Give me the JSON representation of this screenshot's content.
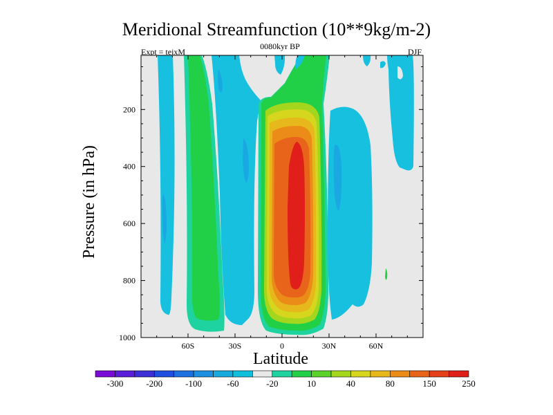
{
  "chart_data": {
    "type": "heatmap",
    "title": "Meridional Streamfunction (10**9kg/m-2)",
    "subtitle_left": "Expt = teixM",
    "subtitle_center": "0080kyr BP",
    "subtitle_right": "DJF",
    "xlabel": "Latitude",
    "ylabel": "Pressure (in hPa)",
    "xlim": [
      -90,
      90
    ],
    "ylim": [
      1000,
      10
    ],
    "x_ticks": [
      {
        "value": -60,
        "label": "60S"
      },
      {
        "value": -30,
        "label": "30S"
      },
      {
        "value": 0,
        "label": "0"
      },
      {
        "value": 30,
        "label": "30N"
      },
      {
        "value": 60,
        "label": "60N"
      }
    ],
    "y_ticks": [
      {
        "value": 200,
        "label": "200"
      },
      {
        "value": 400,
        "label": "400"
      },
      {
        "value": 600,
        "label": "600"
      },
      {
        "value": 800,
        "label": "800"
      },
      {
        "value": 1000,
        "label": "1000"
      }
    ],
    "colorbar": {
      "levels": [
        "-300",
        "-200",
        "-100",
        "-60",
        "-20",
        "10",
        "40",
        "80",
        "150",
        "250"
      ],
      "colors": [
        "#7a0ad6",
        "#5a1ed8",
        "#3c2fd6",
        "#1f4fde",
        "#1d70e0",
        "#1c8fe0",
        "#18aadd",
        "#10bfdc",
        "#e8e8e8",
        "#1ed3a0",
        "#22d048",
        "#5ad22a",
        "#a5d61e",
        "#d6d61e",
        "#e6b81c",
        "#ec8c18",
        "#e8641a",
        "#e4401a",
        "#e01e1a"
      ]
    },
    "background_color": "#e8e8e8",
    "features": [
      {
        "label": "southern polar negative cell",
        "color": "#18c0df",
        "lat": [
          -78,
          -70
        ],
        "p": [
          30,
          990
        ]
      },
      {
        "label": "southern positive (Ferrel) cell",
        "color": "#22d048",
        "lat": [
          -60,
          -46
        ],
        "p": [
          10,
          990
        ]
      },
      {
        "label": "southern negative cell",
        "color": "#18c0df",
        "lat": [
          -45,
          -18
        ],
        "p": [
          10,
          995
        ]
      },
      {
        "label": "Hadley cell core",
        "value": 250,
        "color": "#e01e1a",
        "lat": [
          0,
          14
        ],
        "p": [
          250,
          900
        ]
      },
      {
        "label": "northern negative cell",
        "color": "#18c0df",
        "lat": [
          20,
          40
        ],
        "p": [
          150,
          970
        ]
      },
      {
        "label": "northern polar negative cell",
        "color": "#18c0df",
        "lat": [
          62,
          78
        ],
        "p": [
          10,
          500
        ]
      }
    ]
  }
}
